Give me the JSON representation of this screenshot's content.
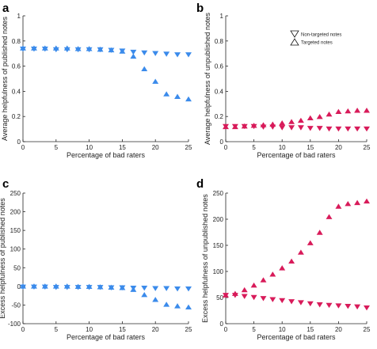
{
  "colors": {
    "blue": "#3b8beb",
    "crimson": "#d81b5a",
    "axis": "#262626"
  },
  "legend": {
    "entries": [
      {
        "label": "Non-targeted notes",
        "marker": "triangle-down"
      },
      {
        "label": "Targeted notes",
        "marker": "triangle-up"
      }
    ]
  },
  "chart_data": [
    {
      "panel": "a",
      "title": "a",
      "type": "scatter",
      "xlabel": "Percentage of bad raters",
      "ylabel": "Average helpfulness of published notes",
      "xlim": [
        0,
        25
      ],
      "ylim": [
        0,
        1
      ],
      "xticks": [
        0,
        5,
        10,
        15,
        20,
        25
      ],
      "yticks": [
        0,
        0.2,
        0.4,
        0.6,
        0.8,
        1
      ],
      "ytick_labels": [
        "0",
        "0.2",
        "0.4",
        "0.6",
        "0.8",
        "1"
      ],
      "color": "#3b8beb",
      "x": [
        0,
        1.67,
        3.33,
        5,
        6.67,
        8.33,
        10,
        11.67,
        13.33,
        15,
        16.67,
        18.33,
        20,
        21.67,
        23.33,
        25
      ],
      "series": [
        {
          "name": "Non-targeted notes",
          "marker": "triangle-down",
          "values": [
            0.735,
            0.735,
            0.735,
            0.73,
            0.73,
            0.73,
            0.73,
            0.73,
            0.725,
            0.72,
            0.71,
            0.705,
            0.7,
            0.695,
            0.69,
            0.69
          ]
        },
        {
          "name": "Targeted notes",
          "marker": "triangle-up",
          "values": [
            0.745,
            0.745,
            0.745,
            0.745,
            0.745,
            0.74,
            0.74,
            0.735,
            0.73,
            0.72,
            0.68,
            0.58,
            0.48,
            0.38,
            0.36,
            0.34
          ]
        }
      ]
    },
    {
      "panel": "b",
      "title": "b",
      "type": "scatter",
      "xlabel": "Percentage of bad raters",
      "ylabel": "Average helpfulness of unpublished notes",
      "xlim": [
        0,
        25
      ],
      "ylim": [
        0,
        1
      ],
      "xticks": [
        0,
        5,
        10,
        15,
        20,
        25
      ],
      "yticks": [
        0,
        0.2,
        0.4,
        0.6,
        0.8,
        1
      ],
      "ytick_labels": [
        "0",
        "0.2",
        "0.4",
        "0.6",
        "0.8",
        "1"
      ],
      "color": "#d81b5a",
      "x": [
        0,
        1.67,
        3.33,
        5,
        6.67,
        8.33,
        10,
        11.67,
        13.33,
        15,
        16.67,
        18.33,
        20,
        21.67,
        23.33,
        25
      ],
      "series": [
        {
          "name": "Non-targeted notes",
          "marker": "triangle-down",
          "values": [
            0.12,
            0.12,
            0.12,
            0.12,
            0.115,
            0.115,
            0.11,
            0.11,
            0.11,
            0.105,
            0.105,
            0.1,
            0.1,
            0.1,
            0.1,
            0.1
          ]
        },
        {
          "name": "Targeted notes",
          "marker": "triangle-up",
          "values": [
            0.12,
            0.12,
            0.125,
            0.13,
            0.135,
            0.14,
            0.15,
            0.16,
            0.17,
            0.19,
            0.2,
            0.22,
            0.24,
            0.245,
            0.25,
            0.25
          ]
        }
      ]
    },
    {
      "panel": "c",
      "title": "c",
      "type": "scatter",
      "xlabel": "Percentage of bad raters",
      "ylabel": "Excess helpfulness of published notes",
      "xlim": [
        0,
        25
      ],
      "ylim": [
        -100,
        250
      ],
      "xticks": [
        0,
        5,
        10,
        15,
        20,
        25
      ],
      "yticks": [
        -100,
        -50,
        0,
        50,
        100,
        150,
        200,
        250
      ],
      "ytick_labels": [
        "-100",
        "-50",
        "0",
        "50",
        "100",
        "150",
        "200",
        "250"
      ],
      "color": "#3b8beb",
      "x": [
        0,
        1.67,
        3.33,
        5,
        6.67,
        8.33,
        10,
        11.67,
        13.33,
        15,
        16.67,
        18.33,
        20,
        21.67,
        23.33,
        25
      ],
      "series": [
        {
          "name": "Non-targeted notes",
          "marker": "triangle-down",
          "values": [
            -2,
            -2,
            -2,
            -3,
            -3,
            -3,
            -3,
            -3,
            -4,
            -4,
            -5,
            -5,
            -6,
            -6,
            -7,
            -7
          ]
        },
        {
          "name": "Targeted notes",
          "marker": "triangle-up",
          "values": [
            1,
            1,
            1,
            1,
            1,
            0,
            0,
            -1,
            -2,
            -3,
            -8,
            -22,
            -35,
            -48,
            -52,
            -55
          ]
        }
      ]
    },
    {
      "panel": "d",
      "title": "d",
      "type": "scatter",
      "xlabel": "Percentage of bad raters",
      "ylabel": "Excess helpfulness of unpublished notes",
      "xlim": [
        0,
        25
      ],
      "ylim": [
        0,
        250
      ],
      "xticks": [
        0,
        5,
        10,
        15,
        20,
        25
      ],
      "yticks": [
        0,
        50,
        100,
        150,
        200,
        250
      ],
      "ytick_labels": [
        "0",
        "50",
        "100",
        "150",
        "200",
        "250"
      ],
      "color": "#d81b5a",
      "x": [
        0,
        1.67,
        3.33,
        5,
        6.67,
        8.33,
        10,
        11.67,
        13.33,
        15,
        16.67,
        18.33,
        20,
        21.67,
        23.33,
        25
      ],
      "series": [
        {
          "name": "Non-targeted notes",
          "marker": "triangle-down",
          "values": [
            54,
            54,
            52,
            50,
            48,
            46,
            44,
            42,
            40,
            38,
            36,
            35,
            34,
            33,
            32,
            30
          ]
        },
        {
          "name": "Targeted notes",
          "marker": "triangle-up",
          "values": [
            55,
            58,
            65,
            74,
            84,
            95,
            107,
            120,
            137,
            155,
            175,
            205,
            225,
            230,
            232,
            235
          ]
        }
      ]
    }
  ]
}
